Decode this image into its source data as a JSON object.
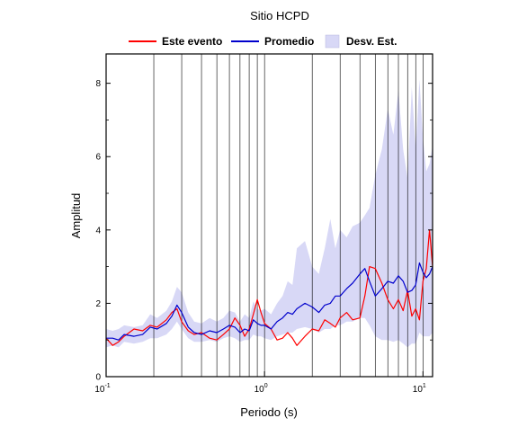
{
  "chart_data": {
    "type": "line",
    "title": "Sitio HCPD",
    "xlabel": "Periodo (s)",
    "ylabel": "Amplitud",
    "x_scale": "log",
    "xlim": [
      0.1,
      11.5
    ],
    "ylim": [
      0,
      8.8
    ],
    "x_ticks": [
      {
        "value": 0.1,
        "base": "10",
        "exp": "-1"
      },
      {
        "value": 1,
        "base": "10",
        "exp": "0"
      },
      {
        "value": 10,
        "base": "10",
        "exp": "1"
      }
    ],
    "y_ticks": [
      0,
      2,
      4,
      6,
      8
    ],
    "grid": "vertical at each integer multiple of each decade",
    "legend": {
      "placement": "top",
      "items": [
        {
          "label": "Este evento",
          "kind": "line",
          "color": "#ff0000"
        },
        {
          "label": "Promedio",
          "kind": "line",
          "color": "#0000cc"
        },
        {
          "label": "Desv. Est.",
          "kind": "band",
          "color": "#d8d8f6"
        }
      ]
    },
    "series": [
      {
        "name": "Este evento",
        "color": "#ff0000",
        "x": [
          0.1,
          0.11,
          0.12,
          0.13,
          0.15,
          0.17,
          0.19,
          0.21,
          0.24,
          0.26,
          0.28,
          0.3,
          0.33,
          0.36,
          0.4,
          0.45,
          0.5,
          0.55,
          0.6,
          0.65,
          0.7,
          0.75,
          0.8,
          0.85,
          0.9,
          0.95,
          1.0,
          1.1,
          1.2,
          1.3,
          1.4,
          1.5,
          1.6,
          1.8,
          2.0,
          2.2,
          2.4,
          2.6,
          2.8,
          3.0,
          3.3,
          3.6,
          4.0,
          4.3,
          4.6,
          5.0,
          5.5,
          6.0,
          6.5,
          7.0,
          7.5,
          8.0,
          8.5,
          9.0,
          9.5,
          10.0,
          10.5,
          11.0,
          11.5
        ],
        "y": [
          1.05,
          0.85,
          0.95,
          1.1,
          1.3,
          1.25,
          1.4,
          1.35,
          1.55,
          1.75,
          1.85,
          1.5,
          1.25,
          1.15,
          1.2,
          1.05,
          1.0,
          1.15,
          1.3,
          1.6,
          1.4,
          1.1,
          1.3,
          1.7,
          2.1,
          1.75,
          1.45,
          1.3,
          1.0,
          1.05,
          1.2,
          1.05,
          0.85,
          1.1,
          1.3,
          1.25,
          1.55,
          1.45,
          1.35,
          1.6,
          1.75,
          1.55,
          1.6,
          2.2,
          3.0,
          2.95,
          2.55,
          2.1,
          1.85,
          2.1,
          1.8,
          2.35,
          1.65,
          1.85,
          1.55,
          2.6,
          2.95,
          4.0,
          3.0
        ]
      },
      {
        "name": "Promedio",
        "color": "#0000cc",
        "x": [
          0.1,
          0.11,
          0.12,
          0.13,
          0.15,
          0.17,
          0.19,
          0.21,
          0.24,
          0.26,
          0.28,
          0.3,
          0.33,
          0.36,
          0.4,
          0.45,
          0.5,
          0.55,
          0.6,
          0.65,
          0.7,
          0.75,
          0.8,
          0.85,
          0.9,
          0.95,
          1.0,
          1.1,
          1.2,
          1.3,
          1.4,
          1.5,
          1.6,
          1.8,
          2.0,
          2.2,
          2.4,
          2.6,
          2.8,
          3.0,
          3.3,
          3.6,
          4.0,
          4.3,
          4.6,
          5.0,
          5.5,
          6.0,
          6.5,
          7.0,
          7.5,
          8.0,
          8.5,
          9.0,
          9.5,
          10.0,
          10.5,
          11.0,
          11.5
        ],
        "y": [
          1.05,
          1.05,
          1.0,
          1.15,
          1.1,
          1.15,
          1.35,
          1.3,
          1.45,
          1.65,
          1.95,
          1.75,
          1.35,
          1.2,
          1.15,
          1.25,
          1.2,
          1.3,
          1.4,
          1.35,
          1.2,
          1.3,
          1.25,
          1.55,
          1.45,
          1.4,
          1.4,
          1.3,
          1.5,
          1.6,
          1.75,
          1.7,
          1.85,
          2.0,
          1.9,
          1.75,
          1.95,
          2.0,
          2.2,
          2.2,
          2.4,
          2.55,
          2.8,
          2.95,
          2.6,
          2.2,
          2.4,
          2.6,
          2.55,
          2.75,
          2.6,
          2.3,
          2.35,
          2.5,
          3.1,
          2.85,
          2.7,
          2.8,
          3.0
        ]
      }
    ],
    "band": {
      "name": "Desv. Est.",
      "color": "#d8d8f6",
      "x": [
        0.1,
        0.11,
        0.12,
        0.13,
        0.15,
        0.17,
        0.19,
        0.21,
        0.24,
        0.26,
        0.28,
        0.3,
        0.33,
        0.36,
        0.4,
        0.45,
        0.5,
        0.55,
        0.6,
        0.65,
        0.7,
        0.75,
        0.8,
        0.85,
        0.9,
        0.95,
        1.0,
        1.1,
        1.2,
        1.3,
        1.4,
        1.5,
        1.6,
        1.8,
        2.0,
        2.2,
        2.4,
        2.6,
        2.8,
        3.0,
        3.3,
        3.6,
        4.0,
        4.3,
        4.6,
        5.0,
        5.5,
        6.0,
        6.5,
        7.0,
        7.5,
        8.0,
        8.5,
        9.0,
        9.5,
        10.0,
        10.5,
        11.0,
        11.5
      ],
      "lower": [
        0.8,
        0.85,
        0.8,
        0.95,
        0.9,
        0.95,
        1.05,
        1.05,
        1.15,
        1.3,
        1.5,
        1.3,
        1.05,
        0.95,
        0.95,
        1.0,
        0.95,
        1.05,
        1.1,
        1.05,
        0.95,
        1.0,
        1.0,
        1.15,
        1.1,
        1.1,
        1.05,
        1.0,
        1.1,
        1.15,
        1.2,
        1.2,
        1.3,
        1.35,
        1.3,
        1.2,
        1.3,
        1.3,
        1.4,
        1.4,
        1.5,
        1.5,
        1.6,
        1.6,
        1.4,
        1.1,
        1.0,
        1.0,
        0.95,
        1.0,
        0.9,
        0.8,
        0.9,
        0.9,
        1.2,
        1.1,
        1.1,
        1.1,
        1.2
      ],
      "upper": [
        1.3,
        1.25,
        1.3,
        1.4,
        1.35,
        1.4,
        1.7,
        1.6,
        1.8,
        2.05,
        2.45,
        2.3,
        1.75,
        1.5,
        1.45,
        1.6,
        1.5,
        1.6,
        1.8,
        1.75,
        1.5,
        1.7,
        1.6,
        2.05,
        1.85,
        1.8,
        1.85,
        1.7,
        2.0,
        2.2,
        2.6,
        2.5,
        3.5,
        3.7,
        3.0,
        2.8,
        3.5,
        4.3,
        3.5,
        4.0,
        3.8,
        4.1,
        4.2,
        4.4,
        4.6,
        5.5,
        6.2,
        7.3,
        6.6,
        7.8,
        6.2,
        5.4,
        7.9,
        6.2,
        8.1,
        6.5,
        5.6,
        5.8,
        6.3
      ]
    }
  }
}
